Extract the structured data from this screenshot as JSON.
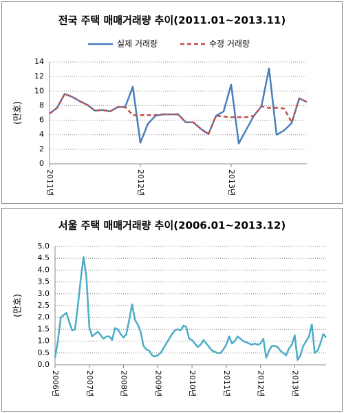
{
  "chart_data": [
    {
      "type": "line",
      "title": "전국 주택 매매거래량 추이(2011.01~2013.11)",
      "y_label": "(만호)",
      "categories": [
        "2011년",
        null,
        null,
        null,
        null,
        null,
        null,
        null,
        null,
        null,
        null,
        null,
        "2012년",
        null,
        null,
        null,
        null,
        null,
        null,
        null,
        null,
        null,
        null,
        null,
        "2013년",
        null,
        null,
        null,
        null,
        null,
        null,
        null,
        null,
        null,
        null
      ],
      "series": [
        {
          "name": "실제 거래량",
          "color": "#4a7ebb",
          "line_style": "solid",
          "values": [
            6.9,
            7.7,
            9.6,
            9.2,
            8.6,
            8.1,
            7.3,
            7.4,
            7.2,
            7.8,
            7.8,
            10.6,
            2.9,
            5.5,
            6.6,
            6.8,
            6.8,
            6.8,
            5.7,
            5.7,
            4.8,
            4.1,
            6.6,
            7.2,
            10.9,
            2.8,
            4.7,
            6.6,
            7.9,
            13.1,
            4.0,
            4.6,
            5.6,
            9.0,
            8.5
          ]
        },
        {
          "name": "수정 거래량",
          "color": "#c0504d",
          "line_style": "dashed",
          "values": [
            6.9,
            7.7,
            9.6,
            9.2,
            8.6,
            8.1,
            7.3,
            7.4,
            7.2,
            7.8,
            7.8,
            6.7,
            6.7,
            6.7,
            6.7,
            6.8,
            6.8,
            6.8,
            5.7,
            5.7,
            4.8,
            4.1,
            6.6,
            6.5,
            6.4,
            6.4,
            6.4,
            6.6,
            7.9,
            7.7,
            7.7,
            7.6,
            5.7,
            9.0,
            8.5
          ]
        }
      ],
      "ylim": [
        0,
        14
      ],
      "yticks": [
        0,
        2,
        4,
        6,
        8,
        10,
        12,
        14
      ],
      "grid": true,
      "legend": "top"
    },
    {
      "type": "line",
      "title": "서울 주택 매매거래량 추이(2006.01~2013.12)",
      "y_label": "(만호)",
      "categories": [
        "2006년",
        null,
        null,
        null,
        null,
        null,
        null,
        null,
        null,
        null,
        null,
        null,
        "2007년",
        null,
        null,
        null,
        null,
        null,
        null,
        null,
        null,
        null,
        null,
        null,
        "2008년",
        null,
        null,
        null,
        null,
        null,
        null,
        null,
        null,
        null,
        null,
        null,
        "2009년",
        null,
        null,
        null,
        null,
        null,
        null,
        null,
        null,
        null,
        null,
        null,
        "2010년",
        null,
        null,
        null,
        null,
        null,
        null,
        null,
        null,
        null,
        null,
        null,
        "2011년",
        null,
        null,
        null,
        null,
        null,
        null,
        null,
        null,
        null,
        null,
        null,
        "2012년",
        null,
        null,
        null,
        null,
        null,
        null,
        null,
        null,
        null,
        null,
        null,
        "2013년",
        null,
        null,
        null,
        null,
        null,
        null,
        null,
        null,
        null,
        null,
        null
      ],
      "values": [
        0.3,
        1.0,
        2.0,
        2.1,
        2.2,
        1.8,
        1.45,
        1.5,
        2.5,
        3.6,
        4.55,
        3.7,
        1.6,
        1.2,
        1.3,
        1.4,
        1.25,
        1.1,
        1.2,
        1.2,
        1.05,
        1.55,
        1.5,
        1.3,
        1.15,
        1.3,
        1.9,
        2.55,
        1.9,
        1.7,
        1.4,
        0.8,
        0.65,
        0.6,
        0.4,
        0.35,
        0.4,
        0.5,
        0.7,
        0.9,
        1.1,
        1.3,
        1.45,
        1.5,
        1.45,
        1.65,
        1.6,
        1.1,
        1.05,
        0.9,
        0.75,
        0.85,
        1.05,
        0.9,
        0.75,
        0.6,
        0.55,
        0.5,
        0.5,
        0.65,
        0.85,
        1.2,
        0.9,
        1.0,
        1.2,
        1.1,
        1.0,
        0.95,
        0.9,
        0.85,
        0.9,
        0.85,
        0.9,
        1.1,
        0.3,
        0.6,
        0.8,
        0.8,
        0.75,
        0.6,
        0.5,
        0.4,
        0.7,
        0.85,
        1.25,
        0.2,
        0.4,
        0.8,
        1.0,
        1.2,
        1.7,
        0.5,
        0.6,
        0.9,
        1.3,
        1.15
      ],
      "color": "#4bacc6",
      "ylim": [
        0,
        5
      ],
      "yticks": [
        {
          "value": 0,
          "label": "0.0"
        },
        0.5,
        {
          "value": 1,
          "label": "1.0"
        },
        1.5,
        {
          "value": 2,
          "label": "2.0"
        },
        2.5,
        {
          "value": 3,
          "label": "3.0"
        },
        3.5,
        {
          "value": 4,
          "label": "4.0"
        },
        4.5,
        {
          "value": 5,
          "label": "5.0"
        }
      ],
      "grid": true
    }
  ]
}
